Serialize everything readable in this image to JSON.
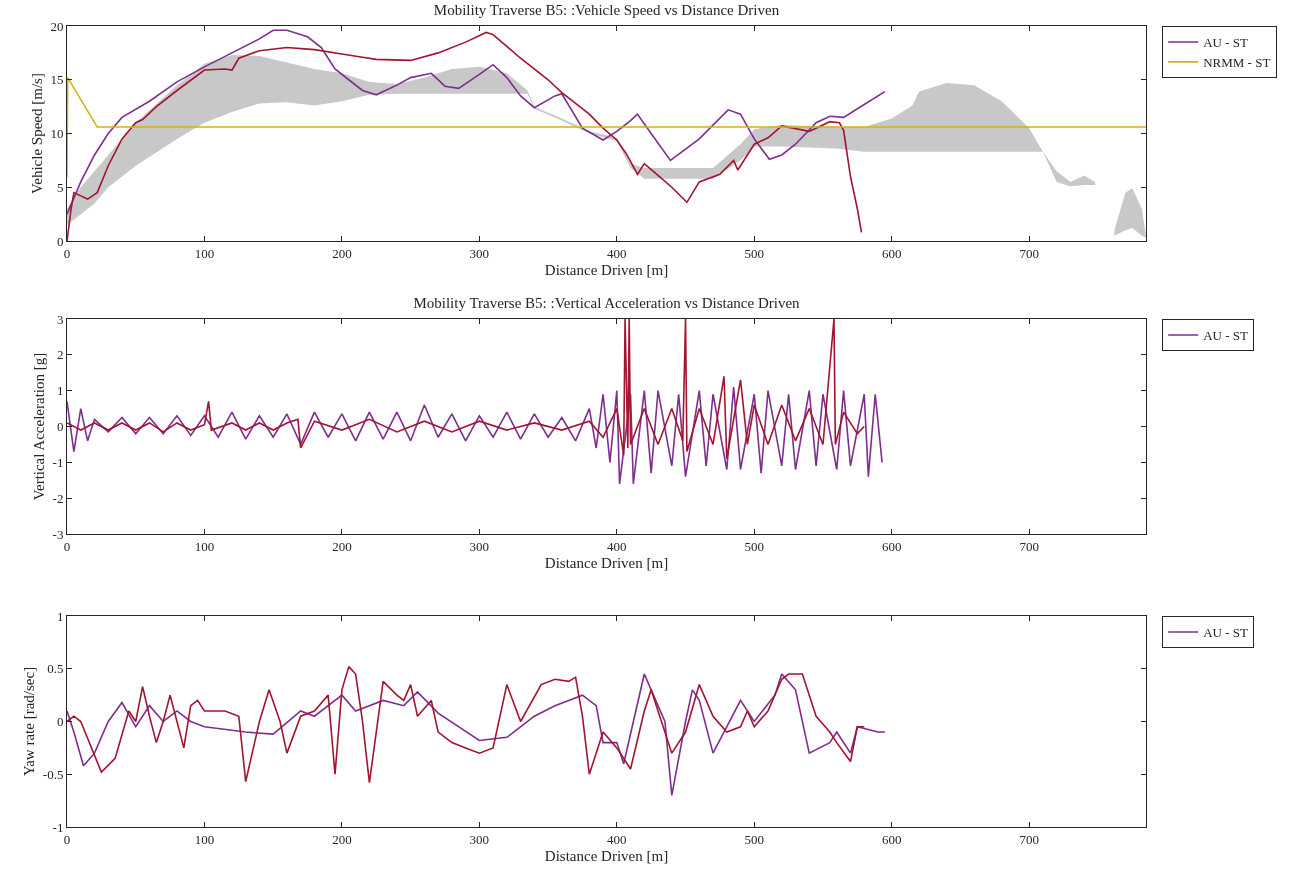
{
  "chart_data": [
    {
      "type": "line",
      "title": "Mobility Traverse B5: :Vehicle Speed vs Distance Driven",
      "xlabel": "Distance Driven [m]",
      "ylabel": "Vehicle Speed [m/s]",
      "xlim": [
        0,
        785
      ],
      "xticks": [
        0,
        100,
        200,
        300,
        400,
        500,
        600,
        700
      ],
      "ylim": [
        0,
        20
      ],
      "yticks": [
        0,
        5,
        10,
        15,
        20
      ],
      "grid": false,
      "legend": "top right",
      "series": [
        {
          "color": "#c8c8c8",
          "x": [
            0,
            10,
            20,
            30,
            50,
            80,
            100,
            120,
            140,
            160,
            180,
            200,
            220,
            240,
            260,
            280,
            300,
            320,
            335,
            340,
            360,
            380,
            400,
            410,
            420,
            470,
            490,
            500,
            520,
            560,
            580,
            600,
            615,
            620,
            640,
            660,
            680,
            700,
            710,
            720,
            730,
            740,
            748,
            752,
            762,
            770,
            775,
            782,
            785
          ],
          "values": [
            null,
            null,
            null,
            null,
            null,
            null,
            null,
            null,
            null,
            null,
            null,
            null,
            null,
            null,
            null,
            null,
            null,
            null,
            null,
            null,
            null,
            null,
            null,
            null,
            null,
            null,
            null,
            null,
            null,
            null,
            null,
            null,
            null,
            null,
            null,
            null,
            null,
            null,
            null,
            null,
            null,
            null,
            null,
            null,
            null,
            null,
            null,
            null,
            null
          ],
          "upper": [
            3,
            5,
            6.5,
            8,
            11,
            14.5,
            16.5,
            17.3,
            17.2,
            16.6,
            16,
            15.6,
            14.8,
            14.6,
            15.2,
            16,
            16.2,
            15.6,
            14,
            12.5,
            11.4,
            10.2,
            9.6,
            7.2,
            6.8,
            6.8,
            9,
            10.4,
            10.8,
            10.6,
            10.6,
            11.4,
            12.6,
            13.9,
            14.7,
            14.5,
            13,
            10.5,
            8.3,
            6.5,
            5.5,
            6.1,
            5.5,
            null,
            1,
            4.5,
            4.9,
            3,
            0.5
          ],
          "lower": [
            1.5,
            2.5,
            3.5,
            5,
            7,
            9.5,
            11,
            12,
            12.8,
            12.9,
            12.6,
            13,
            13.6,
            13.7,
            13.7,
            13.7,
            13.7,
            13.7,
            13.7,
            12.3,
            11.2,
            10,
            9.3,
            6.8,
            5.8,
            5.8,
            7.5,
            8.8,
            8.8,
            8.6,
            8.3,
            8.3,
            8.3,
            8.3,
            8.3,
            8.3,
            8.3,
            8.3,
            8.3,
            5.5,
            5.1,
            5.2,
            5.2,
            null,
            0.5,
            1,
            1.2,
            0.5,
            0.3
          ]
        },
        {
          "name": "AU - ST",
          "color": "#7e2f8e",
          "x": [
            0,
            10,
            20,
            30,
            40,
            60,
            80,
            100,
            120,
            140,
            150,
            160,
            175,
            185,
            195,
            205,
            215,
            225,
            240,
            250,
            265,
            275,
            285,
            300,
            310,
            320,
            330,
            340,
            355,
            360,
            375,
            390,
            400,
            410,
            415,
            425,
            439,
            460,
            481,
            490,
            500,
            511,
            520,
            530,
            545,
            555,
            565,
            580,
            595
          ],
          "values": [
            2.5,
            5.5,
            8,
            10,
            11.5,
            13,
            14.8,
            16.2,
            17.5,
            18.8,
            19.6,
            19.6,
            19,
            18,
            16,
            15,
            14,
            13.6,
            14.5,
            15.2,
            15.6,
            14.4,
            14.2,
            15.5,
            16.4,
            15.2,
            13.5,
            12.4,
            13.5,
            13.7,
            10.5,
            9.4,
            10.2,
            11.2,
            11.8,
            10,
            7.5,
            9.5,
            12.2,
            11.8,
            9.5,
            7.6,
            8,
            9,
            11,
            11.6,
            11.5,
            12.7,
            13.9
          ]
        },
        {
          "color": "#a2142f",
          "x": [
            0,
            3,
            5,
            10,
            15,
            22,
            30,
            40,
            50,
            55,
            65,
            80,
            100,
            115,
            120,
            125,
            140,
            160,
            180,
            200,
            215,
            225,
            250,
            270,
            290,
            305,
            310,
            330,
            350,
            360,
            380,
            390,
            400,
            407,
            410,
            415,
            420,
            430,
            440,
            451,
            460,
            475,
            485,
            488,
            500,
            510,
            520,
            540,
            555,
            562,
            565,
            570,
            575,
            578
          ],
          "values": [
            0,
            3,
            4.5,
            4.2,
            3.9,
            4.5,
            7,
            9.5,
            11,
            11.3,
            12.5,
            14,
            15.9,
            16,
            15.9,
            17,
            17.7,
            18,
            17.8,
            17.4,
            17.1,
            16.9,
            16.8,
            17.5,
            18.5,
            19.4,
            19.2,
            17,
            15,
            13.8,
            11.8,
            10.5,
            9.4,
            8.1,
            7.4,
            6.2,
            7.2,
            6.1,
            5,
            3.6,
            5.5,
            6.2,
            7.5,
            6.6,
            9,
            9.6,
            10.7,
            10.2,
            11.1,
            11,
            10.3,
            6,
            3,
            0.8
          ]
        },
        {
          "name": "NRMM - ST",
          "color": "#d4b01e",
          "x": [
            0,
            0.5,
            22,
            785
          ],
          "values": [
            5.9,
            15.2,
            10.6,
            10.6
          ]
        }
      ]
    },
    {
      "type": "line",
      "title": "Mobility Traverse B5: :Vertical Acceleration vs Distance Driven",
      "xlabel": "Distance Driven [m]",
      "ylabel": "Vertical Acceleration [g]",
      "xlim": [
        0,
        785
      ],
      "xticks": [
        0,
        100,
        200,
        300,
        400,
        500,
        600,
        700
      ],
      "ylim": [
        -3,
        3
      ],
      "yticks": [
        -3,
        -2,
        -1,
        0,
        1,
        2,
        3
      ],
      "grid": false,
      "legend": "top right",
      "series": [
        {
          "name": "AU - ST",
          "color": "#7e2f8e",
          "x": [
            0,
            5,
            10,
            15,
            20,
            30,
            40,
            50,
            60,
            70,
            80,
            90,
            100,
            110,
            120,
            130,
            140,
            150,
            160,
            170,
            180,
            190,
            200,
            210,
            220,
            230,
            240,
            250,
            260,
            270,
            280,
            290,
            300,
            310,
            320,
            330,
            340,
            350,
            360,
            370,
            380,
            385,
            390,
            395,
            400,
            402,
            410,
            412,
            420,
            425,
            430,
            440,
            445,
            450,
            460,
            465,
            470,
            480,
            485,
            490,
            500,
            505,
            510,
            520,
            525,
            530,
            540,
            545,
            550,
            560,
            565,
            570,
            580,
            583,
            588,
            593
          ],
          "values": [
            0.7,
            -0.7,
            0.5,
            -0.4,
            0.2,
            -0.15,
            0.25,
            -0.2,
            0.25,
            -0.2,
            0.3,
            -0.25,
            0.3,
            -0.3,
            0.4,
            -0.35,
            0.3,
            -0.3,
            0.35,
            -0.5,
            0.4,
            -0.3,
            0.35,
            -0.4,
            0.4,
            -0.35,
            0.4,
            -0.4,
            0.6,
            -0.3,
            0.35,
            -0.4,
            0.3,
            -0.3,
            0.4,
            -0.35,
            0.35,
            -0.3,
            0.25,
            -0.4,
            0.5,
            -0.6,
            0.9,
            -1,
            1,
            -1.6,
            0.9,
            -1.6,
            1,
            -1.3,
            1,
            -1.1,
            0.9,
            -1.4,
            1,
            -1.1,
            0.9,
            -1.2,
            1.1,
            -1.2,
            0.9,
            -1.3,
            1,
            -1.1,
            0.9,
            -1.2,
            1,
            -1.1,
            0.9,
            -1.2,
            1,
            -1.1,
            0.9,
            -1.4,
            0.9,
            -1
          ]
        },
        {
          "color": "#a2142f",
          "x": [
            0,
            10,
            20,
            30,
            40,
            50,
            60,
            70,
            80,
            90,
            100,
            103,
            105,
            120,
            130,
            140,
            150,
            160,
            168,
            170,
            180,
            200,
            220,
            240,
            260,
            280,
            300,
            320,
            340,
            360,
            380,
            390,
            400,
            405,
            406,
            408,
            409,
            410,
            420,
            430,
            440,
            448,
            450,
            451,
            460,
            470,
            478,
            480,
            490,
            495,
            500,
            510,
            520,
            530,
            540,
            550,
            558,
            559,
            565,
            575,
            580
          ],
          "values": [
            0.1,
            -0.1,
            0.1,
            -0.1,
            0.1,
            -0.1,
            0.1,
            -0.15,
            0.1,
            -0.1,
            0.05,
            0.7,
            -0.1,
            0.1,
            -0.1,
            0.1,
            -0.1,
            0.1,
            0.2,
            -0.6,
            0.15,
            -0.1,
            0.2,
            -0.15,
            0.15,
            -0.15,
            0.15,
            -0.1,
            0.1,
            -0.1,
            0.15,
            -0.3,
            0.5,
            -0.8,
            3,
            -0.6,
            3,
            -0.5,
            0.5,
            -0.5,
            0.5,
            -0.4,
            3,
            -0.7,
            0.5,
            -0.5,
            1.4,
            -0.9,
            1.3,
            -0.5,
            0.6,
            -0.5,
            0.6,
            -0.4,
            0.5,
            -0.5,
            3,
            -0.5,
            0.4,
            -0.2,
            0
          ]
        }
      ]
    },
    {
      "type": "line",
      "xlabel": "Distance Driven [m]",
      "ylabel": "Yaw rate [rad/sec]",
      "xlim": [
        0,
        785
      ],
      "xticks": [
        0,
        100,
        200,
        300,
        400,
        500,
        600,
        700
      ],
      "ylim": [
        -1,
        1
      ],
      "yticks": [
        -1,
        -0.5,
        0,
        0.5,
        1
      ],
      "grid": false,
      "legend": "top right",
      "series": [
        {
          "name": "AU - ST",
          "color": "#7e2f8e",
          "x": [
            0,
            5,
            12,
            20,
            30,
            40,
            50,
            60,
            70,
            80,
            90,
            100,
            130,
            150,
            170,
            180,
            200,
            210,
            230,
            245,
            255,
            270,
            300,
            320,
            340,
            355,
            375,
            385,
            390,
            400,
            405,
            420,
            425,
            435,
            440,
            450,
            455,
            460,
            470,
            490,
            500,
            515,
            520,
            530,
            540,
            555,
            560,
            570,
            575,
            590,
            595
          ],
          "values": [
            0.1,
            -0.1,
            -0.42,
            -0.3,
            0,
            0.18,
            -0.05,
            0.15,
            0,
            0.1,
            0,
            -0.05,
            -0.1,
            -0.12,
            0.1,
            0.05,
            0.25,
            0.1,
            0.2,
            0.15,
            0.28,
            0.08,
            -0.18,
            -0.15,
            0.05,
            0.15,
            0.25,
            0.15,
            -0.2,
            -0.2,
            -0.4,
            0.45,
            0.3,
            0,
            -0.7,
            0,
            0.3,
            0.2,
            -0.3,
            0.2,
            0,
            0.25,
            0.45,
            0.3,
            -0.3,
            -0.2,
            -0.1,
            -0.3,
            -0.05,
            -0.1,
            -0.1
          ]
        },
        {
          "color": "#a2142f",
          "x": [
            0,
            5,
            10,
            25,
            35,
            45,
            50,
            55,
            60,
            65,
            70,
            75,
            80,
            85,
            90,
            95,
            100,
            115,
            125,
            130,
            140,
            147,
            155,
            160,
            170,
            180,
            190,
            195,
            200,
            205,
            210,
            215,
            220,
            225,
            230,
            240,
            245,
            250,
            255,
            265,
            270,
            280,
            290,
            300,
            310,
            320,
            330,
            345,
            355,
            365,
            370,
            375,
            380,
            390,
            400,
            410,
            420,
            425,
            430,
            440,
            450,
            460,
            470,
            480,
            490,
            495,
            500,
            510,
            520,
            525,
            535,
            545,
            555,
            560,
            570,
            575,
            580
          ],
          "values": [
            0,
            0.05,
            0,
            -0.48,
            -0.35,
            0.1,
            0,
            0.33,
            0.05,
            -0.2,
            0,
            0.25,
            0,
            -0.25,
            0.15,
            0.2,
            0.1,
            0.1,
            0.05,
            -0.57,
            0,
            0.3,
            0,
            -0.3,
            0.05,
            0.1,
            0.25,
            -0.5,
            0.3,
            0.52,
            0.45,
            0,
            -0.58,
            -0.1,
            0.38,
            0.25,
            0.2,
            0.35,
            0.05,
            0.2,
            -0.1,
            -0.2,
            -0.25,
            -0.3,
            -0.25,
            0.35,
            0,
            0.35,
            0.4,
            0.38,
            0.42,
            0.05,
            -0.5,
            -0.1,
            -0.25,
            -0.45,
            0.1,
            0.3,
            0.1,
            -0.3,
            -0.1,
            0.35,
            0.05,
            -0.1,
            -0.05,
            0.1,
            -0.05,
            0.1,
            0.4,
            0.45,
            0.45,
            0.05,
            -0.1,
            -0.2,
            -0.38,
            -0.05,
            -0.05
          ]
        }
      ]
    }
  ]
}
